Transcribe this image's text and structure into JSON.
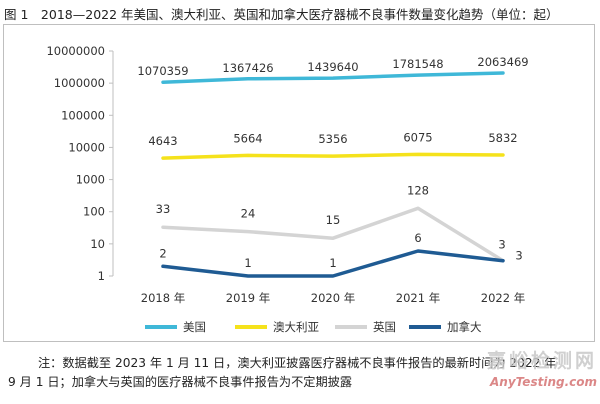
{
  "figure_title": "图 1　2018—2022 年美国、澳大利亚、英国和加拿大医疗器械不良事件数量变化趋势（单位：起）",
  "note_line1": "注：数据截至 2023 年 1 月 11 日，澳大利亚披露医疗器械不良事件报告的最新时间为 2022 年",
  "note_line2": "9 月 1 日；加拿大与英国的医疗器械不良事件报告为不定期披露",
  "watermark": {
    "line1": "嘉峪检测网",
    "line2": "AnyTesting.com"
  },
  "chart_data": {
    "type": "line",
    "yscale": "log",
    "categories": [
      "2018 年",
      "2019 年",
      "2020 年",
      "2021 年",
      "2022 年"
    ],
    "ylim": [
      1,
      10000000
    ],
    "yticks": [
      1,
      10,
      100,
      1000,
      10000,
      100000,
      1000000,
      10000000
    ],
    "ytick_labels": [
      "1",
      "10",
      "100",
      "1000",
      "10000",
      "100000",
      "1000000",
      "10000000"
    ],
    "series": [
      {
        "name": "美国",
        "color": "#3fb8d8",
        "values": [
          1070359,
          1367426,
          1439640,
          1781548,
          2063469
        ],
        "labels": [
          "1070359",
          "1367426",
          "1439640",
          "1781548",
          "2063469"
        ]
      },
      {
        "name": "澳大利亚",
        "color": "#f5e21b",
        "values": [
          4643,
          5664,
          5356,
          6075,
          5832
        ],
        "labels": [
          "4643",
          "5664",
          "5356",
          "6075",
          "5832"
        ]
      },
      {
        "name": "英国",
        "color": "#d4d4d4",
        "values": [
          33,
          24,
          15,
          128,
          3
        ],
        "labels": [
          "33",
          "24",
          "15",
          "128",
          "3"
        ]
      },
      {
        "name": "加拿大",
        "color": "#1f5b93",
        "values": [
          2,
          1,
          1,
          6,
          3
        ],
        "labels": [
          "2",
          "1",
          "1",
          "6",
          "3"
        ]
      }
    ],
    "legend_position": "bottom",
    "grid": false
  }
}
